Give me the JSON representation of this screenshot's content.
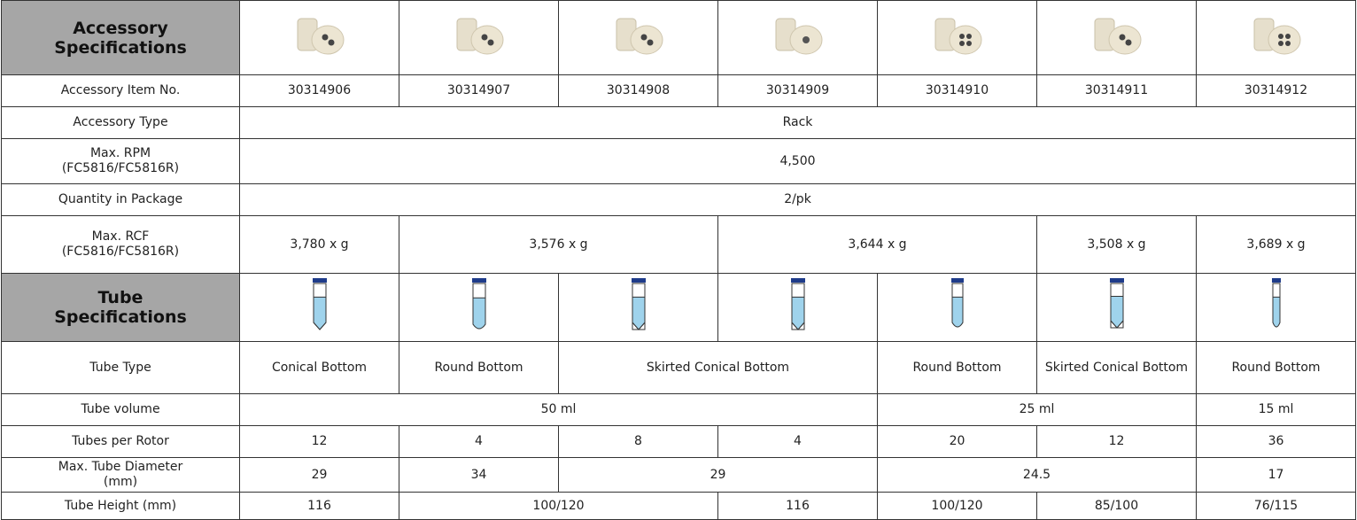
{
  "accessory_header": {
    "title": "Accessory Specifications"
  },
  "accessory_rows": [
    {
      "label": "Accessory Item No.",
      "cells": [
        "30314906",
        "30314907",
        "30314908",
        "30314909",
        "30314910",
        "30314911",
        "30314912"
      ]
    },
    {
      "label": "Accessory Type",
      "cells": [
        "Rack"
      ]
    },
    {
      "label": "Max. RPM (FC5816/FC5816R)",
      "cells": [
        "4,500"
      ]
    },
    {
      "label": "Quantity in Package",
      "cells": [
        "2/pk"
      ]
    },
    {
      "label": "Max. RCF (FC5816/FC5816R)",
      "cells": [
        "3,780 x g",
        "3,576 x g",
        "3,644 x g",
        "3,508 x g",
        "3,689 x g"
      ]
    }
  ],
  "tube_header": {
    "title": "Tube Specifications"
  },
  "tube_rows": [
    {
      "label": "Tube Type",
      "cells": [
        "Conical Bottom",
        "Round Bottom",
        "Skirted Conical Bottom",
        "Round Bottom",
        "Skirted Conical Bottom",
        "Round Bottom"
      ]
    },
    {
      "label": "Tube volume",
      "cells": [
        "50 ml",
        "25 ml",
        "15 ml"
      ]
    },
    {
      "label": "Tubes per Rotor",
      "cells": [
        "12",
        "4",
        "8",
        "4",
        "20",
        "12",
        "36"
      ]
    },
    {
      "label": "Max. Tube Diameter (mm)",
      "cells": [
        "29",
        "34",
        "29",
        "24.5",
        "17"
      ]
    },
    {
      "label": "Tube Height (mm)",
      "cells": [
        "116",
        "100/120",
        "116",
        "100/120",
        "85/100",
        "76/115"
      ]
    }
  ]
}
